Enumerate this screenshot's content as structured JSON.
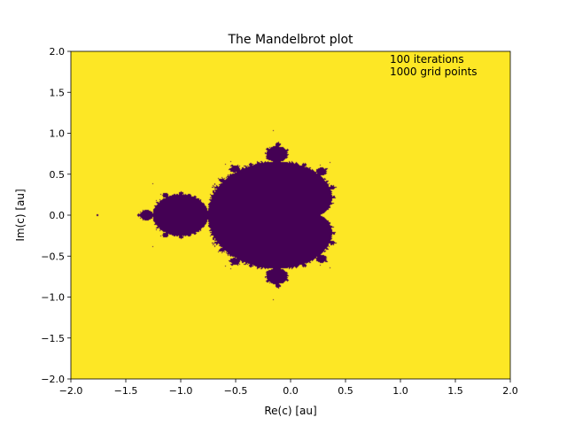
{
  "chart_data": {
    "type": "heatmap",
    "title": "The Mandelbrot plot",
    "xlabel": "Re(c) [au]",
    "ylabel": "Im(c) [au]",
    "xlim": [
      -2.0,
      2.0
    ],
    "ylim": [
      -2.0,
      2.0
    ],
    "xticks": [
      -2.0,
      -1.5,
      -1.0,
      -0.5,
      0.0,
      0.5,
      1.0,
      1.5,
      2.0
    ],
    "yticks": [
      -2.0,
      -1.5,
      -1.0,
      -0.5,
      0.0,
      0.5,
      1.0,
      1.5,
      2.0
    ],
    "xtick_labels": [
      "−2.0",
      "−1.5",
      "−1.0",
      "−0.5",
      "0.0",
      "0.5",
      "1.0",
      "1.5",
      "2.0"
    ],
    "ytick_labels": [
      "−2.0",
      "−1.5",
      "−1.0",
      "−0.5",
      "0.0",
      "0.5",
      "1.0",
      "1.5",
      "2.0"
    ],
    "annotation_lines": [
      "100 iterations",
      "1000 grid points"
    ],
    "iterations": 100,
    "grid_points": 1000,
    "grid": false,
    "colors": {
      "escaped": "#fde725",
      "bounded": "#440154"
    }
  }
}
